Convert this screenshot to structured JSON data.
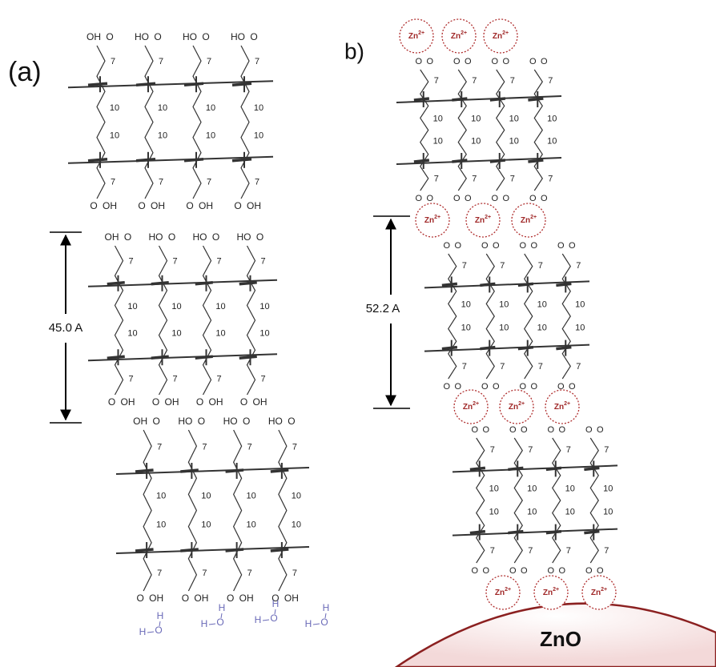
{
  "panel_a": {
    "label": "(a)",
    "spacing": "45.0 A"
  },
  "panel_b": {
    "label": "b)",
    "spacing": "52.2 A"
  },
  "ion": {
    "element": "Zn",
    "charge": "2+"
  },
  "substrate": "ZnO",
  "groups": {
    "acid": "OH",
    "acid_reversed": "HO",
    "carboxylate": "O",
    "short_chain": "7",
    "long_chain": "10"
  },
  "water": {
    "hydrogen": "H",
    "oxygen": "O"
  }
}
